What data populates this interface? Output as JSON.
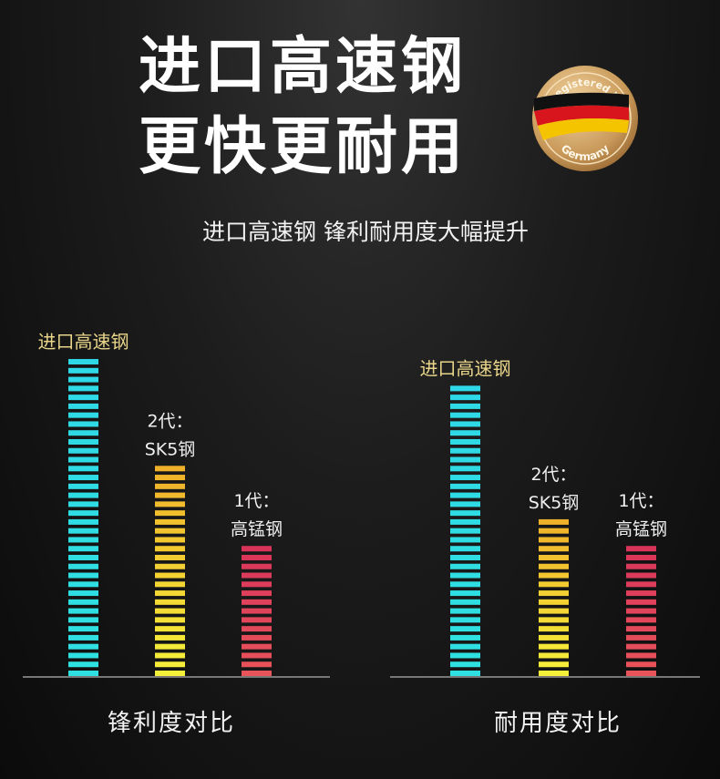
{
  "header": {
    "title_line1": "进口高速钢",
    "title_line2": "更快更耐用",
    "subtitle": "进口高速钢 锋利耐用度大幅提升",
    "badge": {
      "top_text": "Registered in",
      "bottom_text": "Germany"
    }
  },
  "chart_data": [
    {
      "type": "bar",
      "title": "锋利度对比",
      "categories": [
        [
          "进口高速钢"
        ],
        [
          "2代：",
          "SK5钢"
        ],
        [
          "1代：",
          "高锰钢"
        ]
      ],
      "values": [
        36,
        24,
        15
      ],
      "colors": [
        [
          "#2fd8e6",
          "#2fe0e0"
        ],
        [
          "#f0b12a",
          "#f5f03a"
        ],
        [
          "#d8345a",
          "#e8545a"
        ]
      ],
      "label_colors": [
        "#e8d58a",
        "#f0f0f0",
        "#f0f0f0"
      ],
      "grid": false
    },
    {
      "type": "bar",
      "title": "耐用度对比",
      "categories": [
        [
          "进口高速钢"
        ],
        [
          "2代：",
          "SK5钢"
        ],
        [
          "1代：",
          "高锰钢"
        ]
      ],
      "values": [
        33,
        18,
        15
      ],
      "colors": [
        [
          "#2fd8e6",
          "#2fe0e0"
        ],
        [
          "#f0b12a",
          "#f5f03a"
        ],
        [
          "#d8345a",
          "#e8545a"
        ]
      ],
      "label_colors": [
        "#e8d58a",
        "#f0f0f0",
        "#f0f0f0"
      ],
      "grid": false
    }
  ]
}
